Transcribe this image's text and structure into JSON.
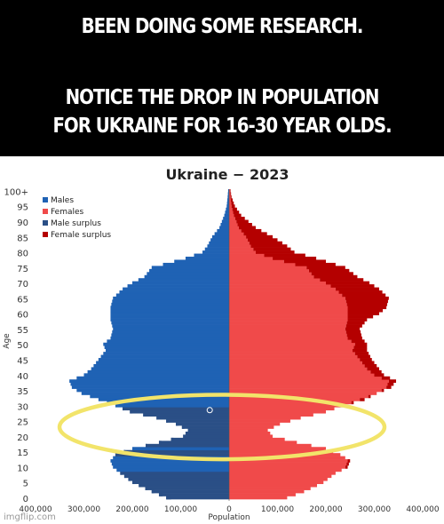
{
  "meme": {
    "line1": "BEEN DOING SOME RESEARCH.",
    "line2a": "NOTICE THE DROP IN POPULATION",
    "line2b": "FOR UKRAINE FOR 16-30 YEAR OLDS."
  },
  "watermark": "imgflip.com",
  "colors": {
    "male": "#1f62b4",
    "female": "#f04a4a",
    "male_surplus": "#2a4f86",
    "female_surplus": "#b40000",
    "highlight": "#f2e46a"
  },
  "chart_data": {
    "type": "population-pyramid",
    "title": "Ukraine − 2023",
    "xlabel": "Population",
    "ylabel": "Age",
    "xlim": [
      -400000,
      400000
    ],
    "x_ticks": [
      -400000,
      -300000,
      -200000,
      -100000,
      0,
      100000,
      200000,
      300000,
      400000
    ],
    "x_tick_labels": [
      "400,000",
      "300,000",
      "200,000",
      "100,000",
      "0",
      "100,000",
      "200,000",
      "300,000",
      "400,000"
    ],
    "y_ticks": [
      0,
      5,
      10,
      15,
      20,
      25,
      30,
      35,
      40,
      45,
      50,
      55,
      60,
      65,
      70,
      75,
      80,
      85,
      90,
      95,
      100
    ],
    "y_tick_labels": [
      "0",
      "5",
      "10",
      "15",
      "20",
      "25",
      "30",
      "35",
      "40",
      "45",
      "50",
      "55",
      "60",
      "65",
      "70",
      "75",
      "80",
      "85",
      "90",
      "95",
      "100+"
    ],
    "legend": [
      "Males",
      "Females",
      "Male surplus",
      "Female surplus"
    ],
    "legend_position": "top-left",
    "age_points": [
      0,
      2,
      5,
      8,
      10,
      12,
      14,
      16,
      18,
      20,
      22,
      24,
      26,
      28,
      30,
      32,
      34,
      36,
      38,
      40,
      42,
      45,
      48,
      50,
      52,
      55,
      58,
      60,
      62,
      65,
      68,
      70,
      72,
      75,
      78,
      80,
      82,
      85,
      88,
      90,
      92,
      95,
      98,
      100
    ],
    "males": [
      130000,
      160000,
      200000,
      225000,
      240000,
      245000,
      235000,
      200000,
      145000,
      95000,
      85000,
      110000,
      150000,
      205000,
      235000,
      270000,
      305000,
      325000,
      330000,
      300000,
      285000,
      270000,
      255000,
      260000,
      245000,
      240000,
      245000,
      245000,
      245000,
      240000,
      220000,
      200000,
      175000,
      160000,
      90000,
      55000,
      45000,
      35000,
      20000,
      15000,
      10000,
      5000,
      3000,
      2000
    ],
    "females": [
      120000,
      155000,
      195000,
      220000,
      245000,
      250000,
      230000,
      200000,
      140000,
      90000,
      80000,
      105000,
      148000,
      200000,
      235000,
      280000,
      305000,
      335000,
      345000,
      320000,
      310000,
      295000,
      285000,
      285000,
      275000,
      270000,
      285000,
      310000,
      325000,
      330000,
      310000,
      290000,
      265000,
      240000,
      180000,
      135000,
      120000,
      90000,
      55000,
      40000,
      25000,
      12000,
      5000,
      3000
    ],
    "highlight_range": [
      13,
      34
    ],
    "marker": {
      "age": 29,
      "value": -40000
    }
  }
}
